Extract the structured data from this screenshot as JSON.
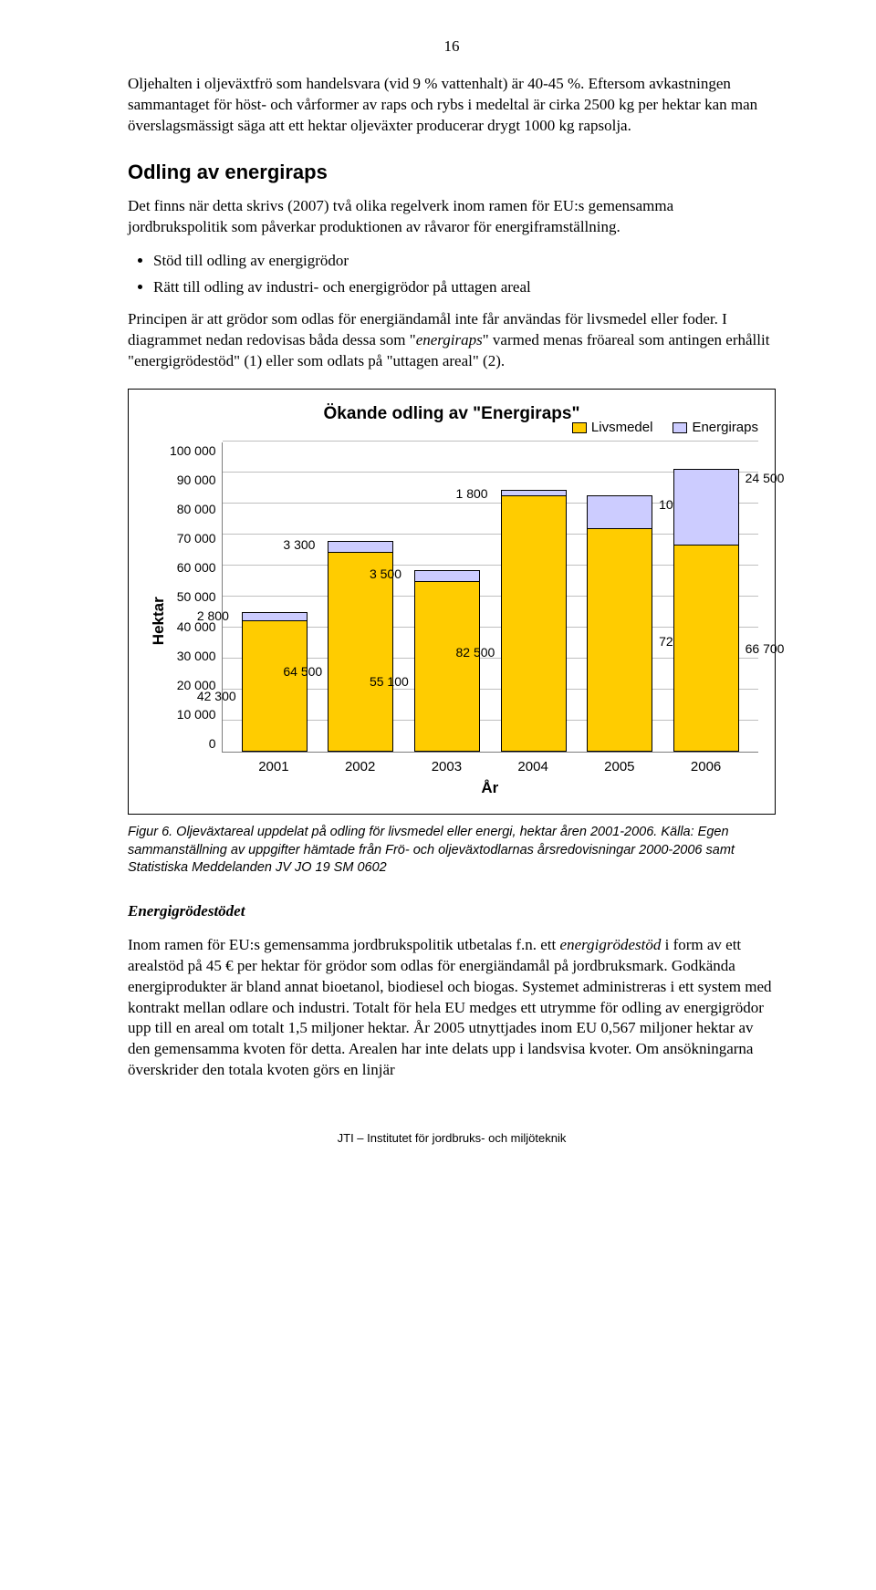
{
  "page_number": "16",
  "para1": "Oljehalten i oljeväxtfrö som handelsvara (vid 9 % vattenhalt) är 40-45 %. Eftersom avkastningen sammantaget för höst- och vårformer av raps och rybs i medeltal är cirka 2500 kg per hektar kan man överslagsmässigt säga att ett hektar oljeväxter producerar drygt 1000 kg rapsolja.",
  "h2": "Odling av energiraps",
  "para2": "Det finns när detta skrivs (2007) två olika regelverk inom ramen för EU:s gemensamma jordbrukspolitik som påverkar produktionen av råvaror för energiframställning.",
  "bullets": [
    "Stöd till odling av energigrödor",
    "Rätt till odling av industri- och energigrödor på uttagen areal"
  ],
  "para3a": "Principen är att grödor som odlas för energiändamål inte får användas för livsmedel eller foder. I diagrammet nedan redovisas båda dessa som \"",
  "para3b": "energiraps",
  "para3c": "\" varmed menas fröareal som antingen erhållit \"energigrödestöd\" (1) eller som odlats på \"uttagen areal\" (2).",
  "chart": {
    "type": "stacked-bar",
    "title": "Ökande odling av \"Energiraps\"",
    "ylabel": "Hektar",
    "xlabel": "År",
    "ylim": [
      0,
      100000
    ],
    "ytick_step": 10000,
    "yticks": [
      "0",
      "10 000",
      "20 000",
      "30 000",
      "40 000",
      "50 000",
      "60 000",
      "70 000",
      "80 000",
      "90 000",
      "100 000"
    ],
    "categories": [
      "2001",
      "2002",
      "2003",
      "2004",
      "2005",
      "2006"
    ],
    "series": [
      {
        "name": "Livsmedel",
        "color": "#ffcc00"
      },
      {
        "name": "Energiraps",
        "color": "#ccccff"
      }
    ],
    "data": [
      {
        "livsmedel": 42300,
        "energiraps": 2800,
        "livsmedel_label": "42 300",
        "energiraps_label": "2 800"
      },
      {
        "livsmedel": 64500,
        "energiraps": 3300,
        "livsmedel_label": "64 500",
        "energiraps_label": "3 300"
      },
      {
        "livsmedel": 55100,
        "energiraps": 3500,
        "livsmedel_label": "55 100",
        "energiraps_label": "3 500"
      },
      {
        "livsmedel": 82500,
        "energiraps": 1800,
        "livsmedel_label": "82 500",
        "energiraps_label": "1 800"
      },
      {
        "livsmedel": 72000,
        "energiraps": 10500,
        "livsmedel_label": "72 000",
        "energiraps_label": "10 500"
      },
      {
        "livsmedel": 66700,
        "energiraps": 24500,
        "livsmedel_label": "66 700",
        "energiraps_label": "24 500"
      }
    ],
    "grid_color": "#bfbfbf",
    "axis_color": "#7d7d7d",
    "background_color": "#ffffff",
    "bar_border": "#000000",
    "label_fontsize": 14
  },
  "caption": "Figur 6. Oljeväxtareal uppdelat på odling för livsmedel eller energi, hektar åren 2001-2006. Källa: Egen sammanställning av uppgifter hämtade från Frö- och oljeväxtodlarnas årsredovisningar 2000-2006 samt Statistiska Meddelanden JV JO 19 SM 0602",
  "h3": "Energigrödestödet",
  "para4a": "Inom ramen för EU:s gemensamma jordbrukspolitik utbetalas f.n. ett ",
  "para4b": "energigrödestöd",
  "para4c": " i form av ett arealstöd på 45 € per hektar för grödor som odlas för energiändamål på jordbruksmark. Godkända energiprodukter är bland annat bioetanol, biodiesel och biogas. Systemet administreras i ett system med kontrakt mellan odlare och industri. Totalt för hela EU medges ett utrymme för odling av energigrödor upp till en areal om totalt 1,5 miljoner hektar. År 2005 utnyttjades inom EU 0,567 miljoner hektar av den gemensamma kvoten för detta. Arealen har inte delats upp i landsvisa kvoter. Om ansökningarna överskrider den totala kvoten görs en linjär",
  "footer": "JTI – Institutet för jordbruks- och miljöteknik"
}
